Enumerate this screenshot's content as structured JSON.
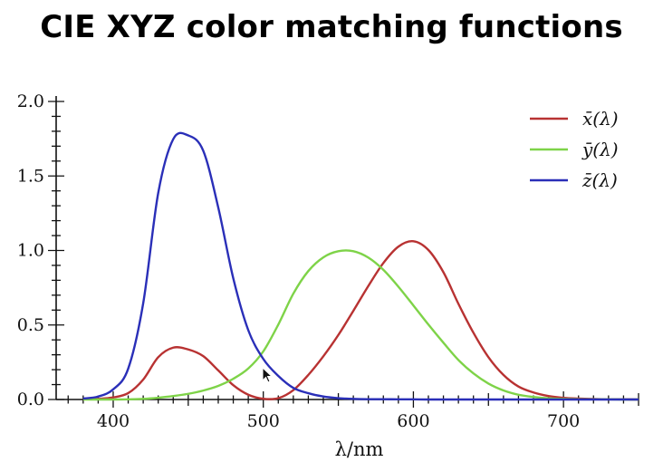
{
  "chart_data": {
    "type": "line",
    "title": "CIE XYZ color matching functions",
    "xlabel": "λ/nm",
    "ylabel": "",
    "xlim": [
      362,
      750
    ],
    "ylim": [
      0,
      2.0
    ],
    "xticks": [
      400,
      500,
      600,
      700
    ],
    "xtick_labels": [
      "400",
      "500",
      "600",
      "700"
    ],
    "yticks": [
      0,
      0.5,
      1.0,
      1.5,
      2.0
    ],
    "ytick_labels": [
      "0.0",
      "0.5",
      "1.0",
      "1.5",
      "2.0"
    ],
    "legend_position": "top-right",
    "x": [
      380,
      390,
      400,
      410,
      420,
      430,
      440,
      450,
      460,
      470,
      480,
      490,
      500,
      510,
      520,
      530,
      540,
      550,
      560,
      570,
      580,
      590,
      600,
      610,
      620,
      630,
      640,
      650,
      660,
      670,
      680,
      690,
      700,
      710,
      720,
      730,
      740,
      750
    ],
    "series": [
      {
        "name": "x̄(λ)",
        "color": "#b83232",
        "values": [
          0.001,
          0.004,
          0.014,
          0.043,
          0.134,
          0.284,
          0.348,
          0.336,
          0.291,
          0.195,
          0.096,
          0.032,
          0.005,
          0.009,
          0.063,
          0.165,
          0.29,
          0.433,
          0.595,
          0.762,
          0.916,
          1.026,
          1.062,
          1.003,
          0.854,
          0.642,
          0.448,
          0.284,
          0.165,
          0.087,
          0.047,
          0.023,
          0.011,
          0.006,
          0.003,
          0.001,
          0.001,
          0.0
        ]
      },
      {
        "name": "ȳ(λ)",
        "color": "#7ed348",
        "values": [
          0.0,
          0.0,
          0.0,
          0.001,
          0.004,
          0.012,
          0.023,
          0.038,
          0.06,
          0.091,
          0.139,
          0.208,
          0.323,
          0.503,
          0.71,
          0.862,
          0.954,
          0.995,
          0.995,
          0.952,
          0.87,
          0.757,
          0.631,
          0.503,
          0.381,
          0.265,
          0.175,
          0.107,
          0.061,
          0.032,
          0.017,
          0.008,
          0.004,
          0.002,
          0.001,
          0.001,
          0.0,
          0.0
        ]
      },
      {
        "name": "z̄(λ)",
        "color": "#2a2fb8",
        "values": [
          0.006,
          0.02,
          0.068,
          0.207,
          0.646,
          1.386,
          1.747,
          1.772,
          1.669,
          1.288,
          0.813,
          0.465,
          0.272,
          0.158,
          0.078,
          0.042,
          0.02,
          0.009,
          0.004,
          0.002,
          0.002,
          0.001,
          0.001,
          0.0,
          0.0,
          0.0,
          0.0,
          0.0,
          0.0,
          0.0,
          0.0,
          0.0,
          0.0,
          0.0,
          0.0,
          0.0,
          0.0,
          0.0
        ]
      }
    ]
  }
}
